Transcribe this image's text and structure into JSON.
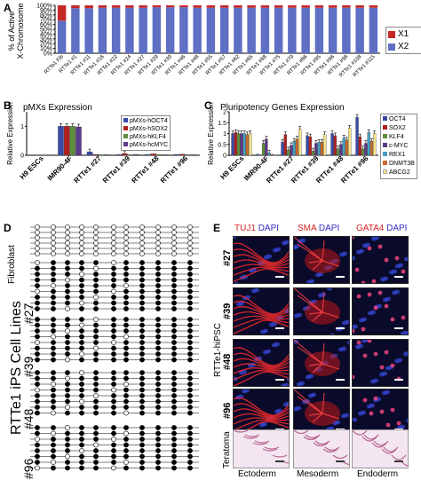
{
  "panels": {
    "A": "A",
    "B": "B",
    "C": "C",
    "D": "D",
    "E": "E"
  },
  "panelA": {
    "ylabel": "% of Active\nX-Chromosome",
    "yticks": [
      "0%",
      "10%",
      "20%",
      "30%",
      "40%",
      "50%",
      "60%",
      "70%",
      "80%",
      "90%",
      "100%"
    ],
    "legend": [
      {
        "name": "X1",
        "color": "#c62828"
      },
      {
        "name": "X2",
        "color": "#5e6fc4"
      }
    ]
  },
  "chart_data": [
    {
      "type": "bar",
      "title": "",
      "ylabel": "% of Active X-Chromosome",
      "ylim": [
        0,
        100
      ],
      "categories": [
        "RTTe1 Fib",
        "RTTe1 #1",
        "RTTe1 #11",
        "RTTe1 #16",
        "RTTe1 #22",
        "RTTe1 #24",
        "RTTe1 #27",
        "RTTe1 #29",
        "RTTe1 #39",
        "RTTe1 #46",
        "RTTe1 #48",
        "RTTe1 #55",
        "RTTe1 #57",
        "RTTe1 #62",
        "RTTe1 #65",
        "RTTe1 #68",
        "RTTe1 #75",
        "RTTe1 #79",
        "RTTe1 #86",
        "RTTe1 #95",
        "RTTe1 #96",
        "RTTe1 #98",
        "RTTe1 #108",
        "RTTe1 #115"
      ],
      "series": [
        {
          "name": "X1",
          "values": [
            32,
            6,
            6,
            5,
            5,
            5,
            5,
            4,
            4,
            4,
            5,
            5,
            5,
            5,
            5,
            5,
            5,
            5,
            5,
            5,
            5,
            5,
            5,
            5
          ]
        },
        {
          "name": "X2",
          "values": [
            68,
            94,
            94,
            95,
            95,
            95,
            95,
            96,
            96,
            96,
            95,
            95,
            95,
            95,
            95,
            95,
            95,
            95,
            95,
            95,
            95,
            95,
            95,
            95
          ]
        }
      ]
    },
    {
      "type": "bar",
      "title": "pMXs Expression",
      "ylabel": "Relative Expression",
      "ylim": [
        0,
        1.5
      ],
      "yticks": [
        "0",
        "1"
      ],
      "categories": [
        "H9 ESCs",
        "IMR90-4F",
        "RTTe1 #27",
        "RTTe1 #39",
        "RTTe1 #48",
        "RTTe1 #96"
      ],
      "series": [
        {
          "name": "pMXs-hOCT4",
          "color": "#3a4aa8",
          "values": [
            0,
            1.0,
            0.12,
            0.03,
            0.03,
            0.03
          ]
        },
        {
          "name": "pMXs-hSOX2",
          "color": "#b02020",
          "values": [
            0,
            1.0,
            0.03,
            0.06,
            0.05,
            0.04
          ]
        },
        {
          "name": "pMXs-hKLF4",
          "color": "#5f8f3a",
          "values": [
            0,
            1.0,
            0.02,
            0.02,
            0.03,
            0.02
          ]
        },
        {
          "name": "pMXs-hcMYC",
          "color": "#5b3a8a",
          "values": [
            0,
            0.98,
            0.02,
            0.03,
            0.02,
            0.02
          ]
        }
      ]
    },
    {
      "type": "bar",
      "title": "Pluripotency Genes Expression",
      "ylabel": "Relative Expression",
      "ylim": [
        0,
        2
      ],
      "yticks": [
        "0",
        "0.5",
        "1",
        "1.5",
        "2"
      ],
      "categories": [
        "H9 ESCs",
        "IMR90-4F",
        "RTTe1 #27",
        "RTTe1 #39",
        "RTTe1 #48",
        "RTTe1 #96"
      ],
      "series": [
        {
          "name": "OCT4",
          "color": "#3a4aa8",
          "values": [
            1.0,
            0.05,
            0.6,
            0.9,
            1.0,
            1.75
          ]
        },
        {
          "name": "SOX2",
          "color": "#b02020",
          "values": [
            1.05,
            0.02,
            0.95,
            0.85,
            0.9,
            0.85
          ]
        },
        {
          "name": "KLF4",
          "color": "#5f8f3a",
          "values": [
            1.0,
            0.55,
            0.25,
            0.2,
            0.3,
            0.3
          ]
        },
        {
          "name": "c-MYC",
          "color": "#5b3a8a",
          "values": [
            1.0,
            0.75,
            0.45,
            0.55,
            0.5,
            0.55
          ]
        },
        {
          "name": "REX1",
          "color": "#45a0c0",
          "values": [
            1.0,
            0.1,
            0.65,
            0.6,
            0.8,
            1.05
          ]
        },
        {
          "name": "DNMT3B",
          "color": "#c96a2a",
          "values": [
            0.95,
            0.05,
            0.75,
            0.6,
            0.7,
            0.65
          ]
        },
        {
          "name": "ABCG2",
          "color": "#f3e38a",
          "values": [
            1.0,
            0.02,
            1.2,
            0.95,
            1.25,
            1.0
          ]
        }
      ]
    }
  ],
  "panelD": {
    "top_label": "Fibroblast",
    "side_label": "RTTe1 iPS Cell Lines",
    "clones": [
      "#27",
      "#39",
      "#48",
      "#96"
    ]
  },
  "panelE": {
    "columns": [
      {
        "stain": "TUJ1",
        "dapi": "DAPI",
        "germ": "Ectoderm"
      },
      {
        "stain": "SMA",
        "dapi": "DAPI",
        "germ": "Mesoderm"
      },
      {
        "stain": "GATA4",
        "dapi": "DAPI",
        "germ": "Endoderm"
      }
    ],
    "rows": [
      "#27",
      "#39",
      "#48",
      "#96"
    ],
    "side_label": "RTTe1-hiPSC",
    "teratoma_label": "Teratoma",
    "stain_color": "#d42020",
    "dapi_color": "#3030c0"
  }
}
